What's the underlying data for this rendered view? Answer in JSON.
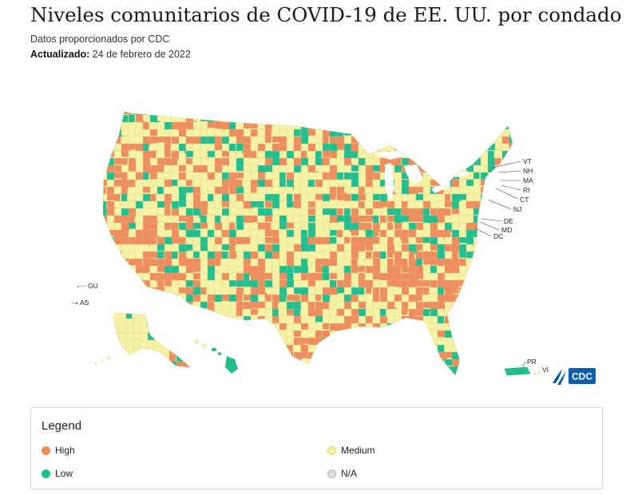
{
  "header": {
    "title": "Niveles comunitarios de COVID-19 de EE. UU. por condado",
    "source": "Datos proporcionados por CDC",
    "updated_label": "Actualizado:",
    "updated_date": "24 de febrero de 2022"
  },
  "map": {
    "territory_labels": [
      "GU",
      "AS",
      "PR",
      "VI"
    ],
    "state_callouts": [
      "VT",
      "NH",
      "MA",
      "RI",
      "CT",
      "NJ",
      "DE",
      "MD",
      "DC"
    ],
    "logo_text": "CDC"
  },
  "legend": {
    "title": "Legend",
    "items": [
      {
        "label": "High",
        "color": "#f08d5c"
      },
      {
        "label": "Medium",
        "color": "#f7f3a3"
      },
      {
        "label": "Low",
        "color": "#1fbf8f"
      },
      {
        "label": "N/A",
        "color": "#dddddd"
      }
    ]
  },
  "colors": {
    "high": "#f08d5c",
    "medium": "#f7f3a3",
    "low": "#1fbf8f",
    "na": "#dddddd",
    "cdc_blue": "#0a5ea8"
  }
}
